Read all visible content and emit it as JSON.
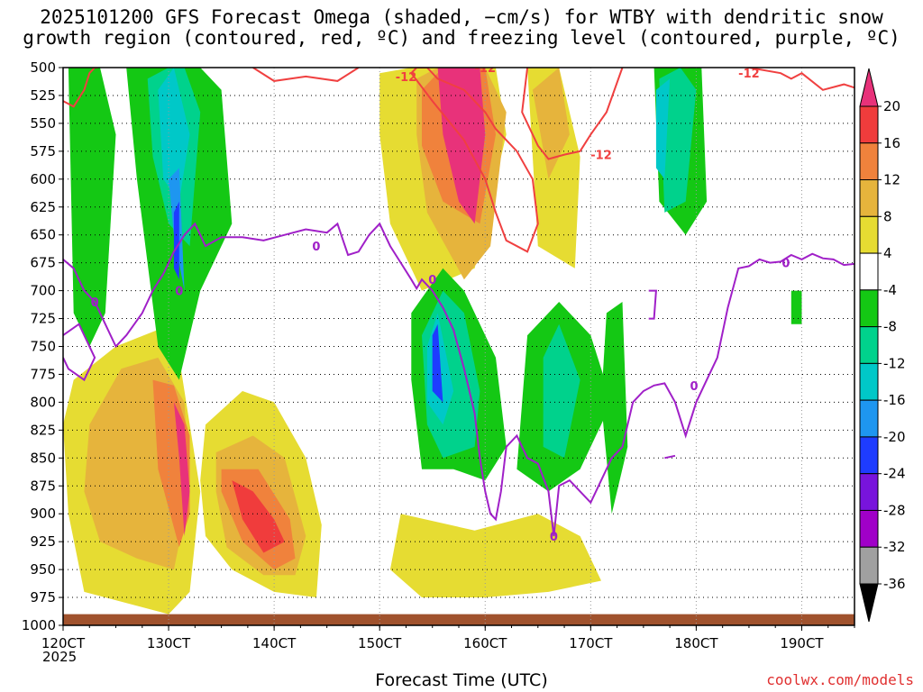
{
  "title": {
    "line1": "2025101200 GFS Forecast Omega (shaded, −cm/s) for WTBY with dendritic snow",
    "line2": "growth region (contoured, red, ºC) and freezing level (contoured, purple, ºC)"
  },
  "credit": "coolwx.com/models",
  "chart_data": {
    "type": "heatmap",
    "title": "2025101200 GFS Forecast Omega (shaded, −cm/s) for WTBY with dendritic snow growth region (contoured, red, ºC) and freezing level (contoured, purple, ºC)",
    "xlabel": "Forecast Time (UTC)",
    "ylabel": "",
    "x_ticks": [
      "120CT",
      "130CT",
      "140CT",
      "150CT",
      "160CT",
      "170CT",
      "180CT",
      "190CT"
    ],
    "x_tick_values": [
      12,
      13,
      14,
      15,
      16,
      17,
      18,
      19
    ],
    "x_year_label": "2025",
    "xlim": [
      12.0,
      19.5
    ],
    "y_ticks": [
      500,
      525,
      550,
      575,
      600,
      625,
      650,
      675,
      700,
      725,
      750,
      775,
      800,
      825,
      850,
      875,
      900,
      925,
      950,
      975,
      1000
    ],
    "ylim": [
      1000,
      500
    ],
    "grid": true,
    "colorbar": {
      "labels": [
        "20",
        "16",
        "12",
        "8",
        "4",
        "-4",
        "-8",
        "-12",
        "-16",
        "-20",
        "-24",
        "-28",
        "-32",
        "-36"
      ],
      "bins": [
        {
          "range": "above 20",
          "color": "#e8327a"
        },
        {
          "range": "16 to 20",
          "color": "#f03c3c"
        },
        {
          "range": "12 to 16",
          "color": "#f0823c"
        },
        {
          "range": "8 to 12",
          "color": "#e6b43c"
        },
        {
          "range": "4 to 8",
          "color": "#e6dc32"
        },
        {
          "range": "-4 to 4",
          "color": "#ffffff"
        },
        {
          "range": "-8 to -4",
          "color": "#14c814"
        },
        {
          "range": "-12 to -8",
          "color": "#00d28c"
        },
        {
          "range": "-16 to -12",
          "color": "#00c8c8"
        },
        {
          "range": "-20 to -16",
          "color": "#1e96f0"
        },
        {
          "range": "-24 to -20",
          "color": "#1e3cff"
        },
        {
          "range": "-28 to -24",
          "color": "#7814dc"
        },
        {
          "range": "-32 to -28",
          "color": "#a000c8"
        },
        {
          "range": "-36 to -32",
          "color": "#a0a0a0"
        },
        {
          "range": "below -36",
          "color": "#000000"
        }
      ]
    },
    "contours": [
      {
        "name": "",
        "level": -12,
        "color": "#f04040",
        "segments": [
          {
            "x": [
              12.0,
              12.1,
              12.2,
              12.25,
              12.3,
              12.33
            ],
            "y": [
              530,
              535,
              520,
              505,
              500,
              500
            ]
          },
          {
            "x": [
              13.8,
              14.0,
              14.3,
              14.6,
              14.8
            ],
            "y": [
              500,
              512,
              508,
              512,
              500
            ]
          },
          {
            "x": [
              15.3,
              15.5,
              15.8,
              16.0,
              16.1,
              16.2,
              16.4,
              16.5,
              16.45,
              16.3,
              16.1,
              16.0,
              15.8,
              15.55,
              15.45,
              15.35,
              15.3
            ],
            "y": [
              505,
              530,
              565,
              600,
              630,
              655,
              665,
              640,
              600,
              575,
              555,
              540,
              520,
              510,
              500,
              500,
              505
            ]
          },
          {
            "x": [
              16.4,
              16.35,
              16.5,
              16.6,
              16.75,
              16.9,
              17.0,
              17.15,
              17.3
            ],
            "y": [
              500,
              540,
              570,
              582,
              578,
              575,
              560,
              540,
              500
            ]
          },
          {
            "x": [
              17.9,
              18.2,
              18.5,
              18.8,
              18.9,
              19.0,
              19.2,
              19.4,
              19.5
            ],
            "y": [
              500,
              497,
              500,
              505,
              510,
              505,
              520,
              515,
              518
            ]
          }
        ]
      },
      {
        "name": "",
        "level": 0,
        "color": "#a020c8",
        "segments": [
          {
            "x": [
              12.0,
              12.1,
              12.2,
              12.3,
              12.4,
              12.5,
              12.6,
              12.75,
              12.85,
              12.95,
              13.05,
              13.15,
              13.25,
              13.35,
              13.5,
              13.7,
              13.9,
              14.1,
              14.3,
              14.5,
              14.6,
              14.7,
              14.8,
              14.9,
              15.0,
              15.1,
              15.2,
              15.3,
              15.35,
              15.4,
              15.5,
              15.6,
              15.7,
              15.8,
              15.9,
              15.95,
              16.0,
              16.05,
              16.1,
              16.15,
              16.2,
              16.3,
              16.35,
              16.4,
              16.5,
              16.6,
              16.65,
              16.7,
              16.8,
              16.9,
              17.0,
              17.1,
              17.2,
              17.3,
              17.4,
              17.5,
              17.6,
              17.7,
              17.8,
              17.9,
              18.0,
              18.1,
              18.2,
              18.3,
              18.4,
              18.5,
              18.6,
              18.7,
              18.8,
              18.9,
              19.0,
              19.1,
              19.2,
              19.3,
              19.4,
              19.5
            ],
            "y": [
              672,
              680,
              700,
              710,
              730,
              750,
              740,
              720,
              700,
              685,
              665,
              650,
              640,
              660,
              652,
              652,
              655,
              650,
              645,
              648,
              640,
              668,
              665,
              650,
              640,
              660,
              675,
              690,
              698,
              690,
              700,
              715,
              735,
              770,
              810,
              850,
              880,
              900,
              905,
              880,
              840,
              830,
              840,
              850,
              855,
              880,
              920,
              875,
              870,
              880,
              890,
              870,
              850,
              840,
              800,
              790,
              785,
              783,
              800,
              830,
              800,
              780,
              760,
              715,
              680,
              678,
              672,
              675,
              674,
              668,
              672,
              667,
              671,
              672,
              677,
              676
            ]
          },
          {
            "x": [
              12.0,
              12.15,
              12.3,
              12.2,
              12.05,
              12.0
            ],
            "y": [
              740,
              730,
              760,
              780,
              770,
              760
            ]
          },
          {
            "x": [
              17.55,
              17.62,
              17.6,
              17.55
            ],
            "y": [
              700,
              700,
              725,
              725
            ]
          },
          {
            "x": [
              17.7,
              17.8
            ],
            "y": [
              850,
              848
            ]
          }
        ]
      }
    ],
    "contour_labels": [
      {
        "text": "-12",
        "x": 15.25,
        "y": 508
      },
      {
        "text": "-12",
        "x": 16.0,
        "y": 500
      },
      {
        "text": "-12",
        "x": 17.1,
        "y": 578
      },
      {
        "text": "-12",
        "x": 18.5,
        "y": 505
      },
      {
        "text": "0",
        "x": 12.3,
        "y": 710
      },
      {
        "text": "0",
        "x": 13.1,
        "y": 700
      },
      {
        "text": "0",
        "x": 14.4,
        "y": 660
      },
      {
        "text": "0",
        "x": 15.5,
        "y": 690
      },
      {
        "text": "0",
        "x": 16.65,
        "y": 920
      },
      {
        "text": "0",
        "x": 17.98,
        "y": 785
      },
      {
        "text": "0",
        "x": 18.85,
        "y": 675
      }
    ],
    "omega_regions": [
      {
        "bin": "4 to 8",
        "x": [
          12.1,
          12.5,
          12.9,
          13.1,
          13.2,
          13.3,
          13.2,
          13.0,
          12.6,
          12.2,
          12.05,
          12.0
        ],
        "y": [
          780,
          750,
          735,
          760,
          820,
          880,
          970,
          990,
          980,
          970,
          900,
          820
        ]
      },
      {
        "bin": "8 to 12",
        "x": [
          12.25,
          12.55,
          12.9,
          13.15,
          13.2,
          13.05,
          12.7,
          12.35,
          12.2
        ],
        "y": [
          820,
          770,
          760,
          800,
          880,
          950,
          940,
          925,
          880
        ]
      },
      {
        "bin": "12 to 16",
        "x": [
          12.85,
          13.05,
          13.2,
          13.2,
          13.1,
          12.9
        ],
        "y": [
          780,
          785,
          830,
          900,
          930,
          860
        ]
      },
      {
        "bin": "above 20",
        "x": [
          13.05,
          13.15,
          13.2,
          13.15,
          13.1
        ],
        "y": [
          800,
          820,
          880,
          920,
          850
        ]
      },
      {
        "bin": "4 to 8",
        "x": [
          13.35,
          13.7,
          14.0,
          14.3,
          14.45,
          14.4,
          14.0,
          13.6,
          13.35,
          13.3
        ],
        "y": [
          820,
          790,
          800,
          850,
          910,
          975,
          970,
          950,
          920,
          870
        ]
      },
      {
        "bin": "8 to 12",
        "x": [
          13.45,
          13.8,
          14.1,
          14.3,
          14.2,
          13.9,
          13.55,
          13.45
        ],
        "y": [
          845,
          830,
          850,
          920,
          955,
          955,
          930,
          880
        ]
      },
      {
        "bin": "12 to 16",
        "x": [
          13.5,
          13.85,
          14.15,
          14.2,
          14.0,
          13.7,
          13.5
        ],
        "y": [
          860,
          860,
          905,
          940,
          950,
          925,
          880
        ]
      },
      {
        "bin": "16 to 20",
        "x": [
          13.6,
          13.8,
          14.0,
          14.1,
          13.9,
          13.7
        ],
        "y": [
          870,
          880,
          905,
          925,
          935,
          905
        ]
      },
      {
        "bin": "4 to 8",
        "x": [
          15.2,
          15.9,
          16.5,
          16.9,
          17.1,
          16.6,
          16.0,
          15.4,
          15.1
        ],
        "y": [
          900,
          915,
          900,
          920,
          960,
          970,
          975,
          975,
          950
        ]
      },
      {
        "bin": "4 to 8",
        "x": [
          15.0,
          15.3,
          15.7,
          16.1,
          16.2,
          15.9,
          15.4,
          15.1,
          15.0
        ],
        "y": [
          505,
          500,
          500,
          500,
          560,
          680,
          700,
          640,
          560
        ]
      },
      {
        "bin": "8 to 12",
        "x": [
          15.35,
          15.55,
          16.0,
          16.2,
          16.05,
          15.8,
          15.45,
          15.35
        ],
        "y": [
          510,
          500,
          500,
          540,
          660,
          690,
          630,
          560
        ]
      },
      {
        "bin": "12 to 16",
        "x": [
          15.4,
          15.6,
          16.0,
          16.1,
          15.95,
          15.6,
          15.4
        ],
        "y": [
          520,
          500,
          500,
          560,
          640,
          620,
          570
        ]
      },
      {
        "bin": "above 20",
        "x": [
          15.55,
          15.7,
          15.95,
          16.0,
          15.9,
          15.75,
          15.6
        ],
        "y": [
          500,
          500,
          500,
          560,
          640,
          620,
          560
        ]
      },
      {
        "bin": "4 to 8",
        "x": [
          16.4,
          16.7,
          16.9,
          16.85,
          16.5
        ],
        "y": [
          500,
          500,
          580,
          680,
          660
        ]
      },
      {
        "bin": "8 to 12",
        "x": [
          16.45,
          16.7,
          16.8,
          16.6
        ],
        "y": [
          520,
          500,
          560,
          600
        ]
      },
      {
        "bin": "-8 to -4",
        "x": [
          12.05,
          12.2,
          12.35,
          12.5,
          12.4,
          12.25,
          12.1
        ],
        "y": [
          500,
          500,
          500,
          560,
          720,
          750,
          720
        ]
      },
      {
        "bin": "-8 to -4",
        "x": [
          12.6,
          12.8,
          13.0,
          13.3,
          13.5,
          13.6,
          13.3,
          13.1,
          12.9,
          12.7
        ],
        "y": [
          500,
          500,
          500,
          500,
          520,
          640,
          700,
          780,
          750,
          600
        ]
      },
      {
        "bin": "-12 to -8",
        "x": [
          12.8,
          13.0,
          13.15,
          13.3,
          13.2,
          13.0,
          12.85
        ],
        "y": [
          510,
          500,
          500,
          540,
          660,
          640,
          580
        ]
      },
      {
        "bin": "-16 to -12",
        "x": [
          12.9,
          13.05,
          13.2,
          13.1,
          12.95
        ],
        "y": [
          520,
          500,
          560,
          620,
          600
        ]
      },
      {
        "bin": "-20 to -16",
        "x": [
          13.0,
          13.1,
          13.15,
          13.05
        ],
        "y": [
          600,
          590,
          700,
          650
        ]
      },
      {
        "bin": "-24 to -20",
        "x": [
          13.05,
          13.1,
          13.1,
          13.05
        ],
        "y": [
          630,
          620,
          690,
          680
        ]
      },
      {
        "bin": "-8 to -4",
        "x": [
          15.3,
          15.6,
          15.8,
          16.1,
          16.2,
          16.0,
          15.7,
          15.4,
          15.3
        ],
        "y": [
          720,
          680,
          700,
          760,
          840,
          870,
          860,
          860,
          780
        ]
      },
      {
        "bin": "-12 to -8",
        "x": [
          15.4,
          15.6,
          15.8,
          15.95,
          15.9,
          15.6,
          15.45
        ],
        "y": [
          740,
          700,
          720,
          790,
          840,
          850,
          820
        ]
      },
      {
        "bin": "-16 to -12",
        "x": [
          15.45,
          15.55,
          15.7,
          15.6,
          15.45
        ],
        "y": [
          750,
          720,
          790,
          820,
          800
        ]
      },
      {
        "bin": "-24 to -20",
        "x": [
          15.5,
          15.55,
          15.6,
          15.5
        ],
        "y": [
          740,
          730,
          800,
          790
        ]
      },
      {
        "bin": "-8 to -4",
        "x": [
          16.4,
          16.7,
          17.0,
          17.2,
          16.9,
          16.6,
          16.3
        ],
        "y": [
          740,
          710,
          740,
          800,
          860,
          880,
          860
        ]
      },
      {
        "bin": "-12 to -8",
        "x": [
          16.55,
          16.7,
          16.9,
          16.75,
          16.55
        ],
        "y": [
          760,
          730,
          780,
          850,
          840
        ]
      },
      {
        "bin": "-8 to -4",
        "x": [
          17.6,
          17.9,
          18.05,
          18.1,
          17.9,
          17.65
        ],
        "y": [
          500,
          500,
          500,
          620,
          650,
          620
        ]
      },
      {
        "bin": "-12 to -8",
        "x": [
          17.65,
          17.85,
          18.0,
          17.9,
          17.7
        ],
        "y": [
          510,
          500,
          520,
          620,
          630
        ]
      },
      {
        "bin": "-16 to -12",
        "x": [
          17.62,
          17.75,
          17.7,
          17.62
        ],
        "y": [
          520,
          510,
          600,
          590
        ]
      },
      {
        "bin": "-8 to -4",
        "x": [
          17.15,
          17.3,
          17.35,
          17.2,
          17.1
        ],
        "y": [
          720,
          710,
          840,
          900,
          800
        ]
      },
      {
        "bin": "-8 to -4",
        "x": [
          18.9,
          19.0,
          19.0,
          18.9
        ],
        "y": [
          700,
          700,
          730,
          730
        ]
      }
    ],
    "terrain": {
      "label": "",
      "color": "#a0522d",
      "pressure_top": 990
    }
  }
}
